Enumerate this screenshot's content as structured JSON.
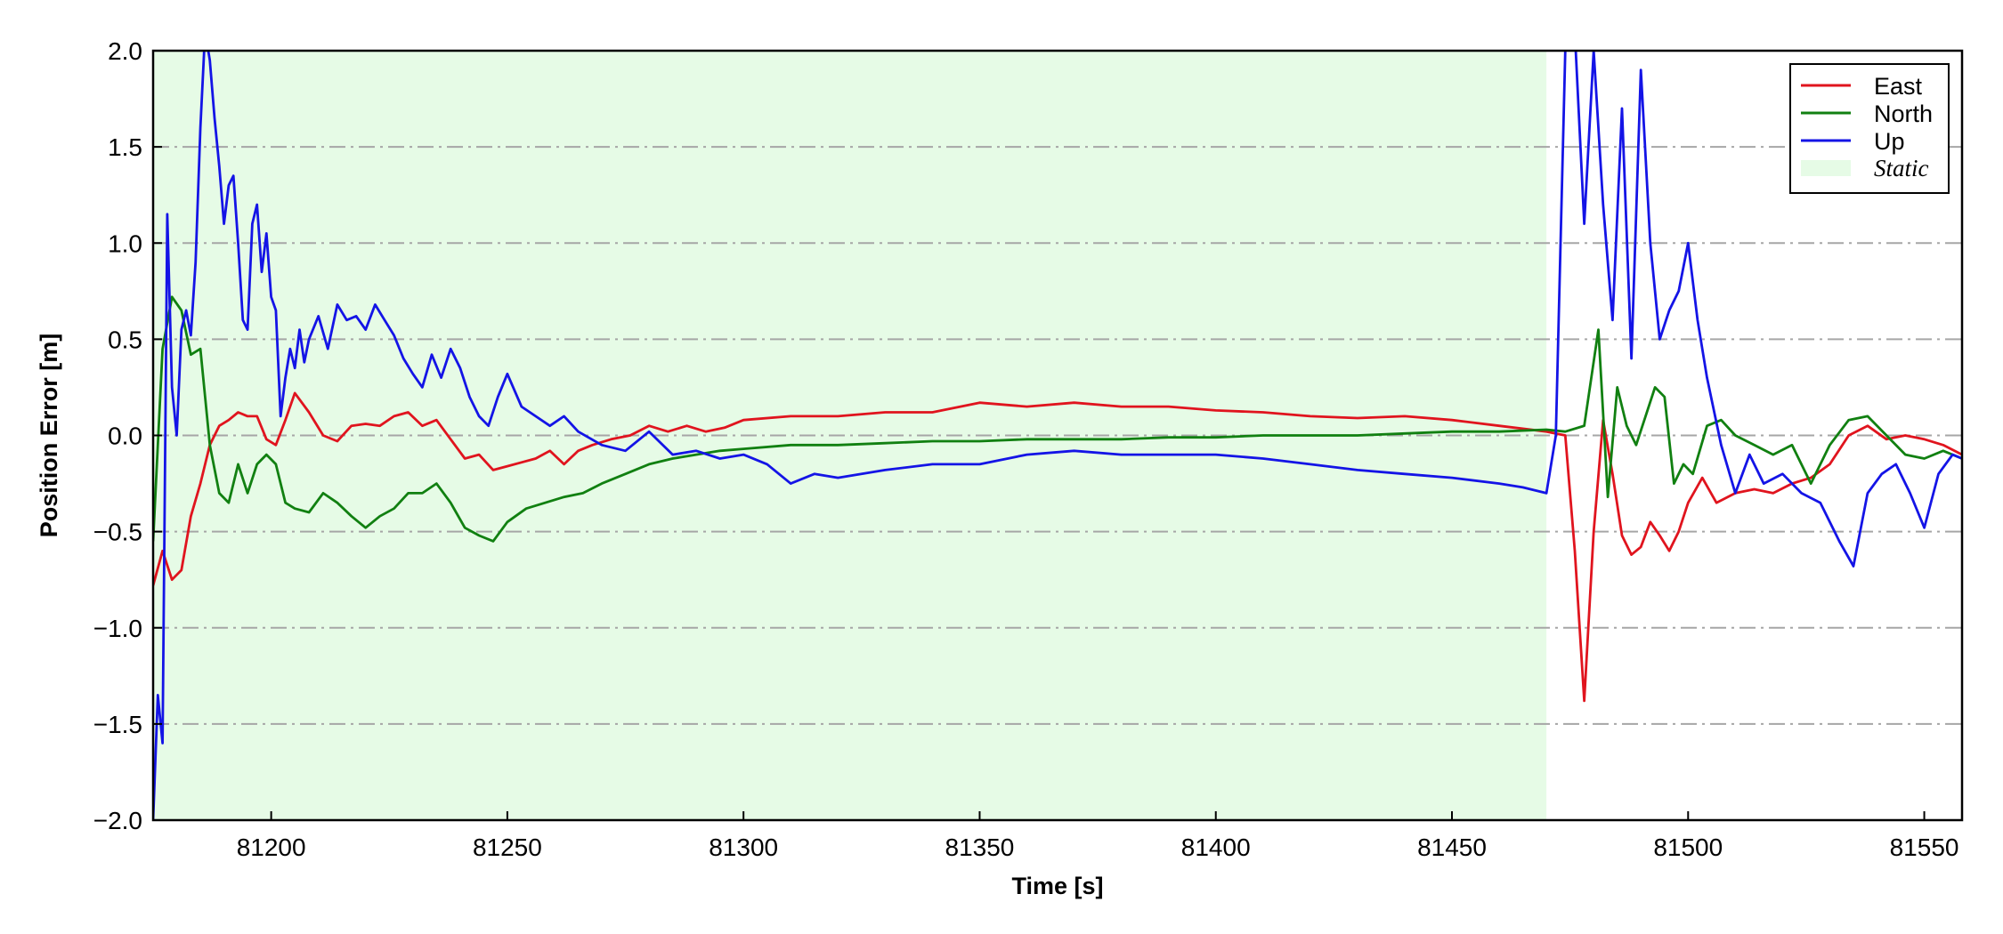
{
  "chart_data": {
    "type": "line",
    "xlabel": "Time [s]",
    "ylabel": "Position Error [m]",
    "xlim": [
      81175,
      81558
    ],
    "ylim": [
      -2.0,
      2.0
    ],
    "xticks": [
      81200,
      81250,
      81300,
      81350,
      81400,
      81450,
      81500,
      81550
    ],
    "xtick_labels": [
      "81200",
      "81250",
      "81300",
      "81350",
      "81400",
      "81450",
      "81500",
      "81550"
    ],
    "yticks": [
      2.0,
      1.5,
      1.0,
      0.5,
      0.0,
      -0.5,
      -1.0,
      -1.5,
      -2.0
    ],
    "ytick_labels": [
      "2.0",
      "1.5",
      "1.0",
      "0.5",
      "0.0",
      "−0.5",
      "−1.0",
      "−1.5",
      "−2.0"
    ],
    "grid": "horizontal dash-dot",
    "legend_position": "top-right",
    "shaded_region": {
      "label": "Static",
      "x": [
        81175,
        81470
      ],
      "color": "#e6fbe6"
    },
    "series": [
      {
        "name": "East",
        "color": "#e0141e",
        "x": [
          81175,
          81177,
          81179,
          81181,
          81183,
          81185,
          81187,
          81189,
          81191,
          81193,
          81195,
          81197,
          81199,
          81201,
          81203,
          81205,
          81208,
          81211,
          81214,
          81217,
          81220,
          81223,
          81226,
          81229,
          81232,
          81235,
          81238,
          81241,
          81244,
          81247,
          81250,
          81253,
          81256,
          81259,
          81262,
          81265,
          81268,
          81272,
          81276,
          81280,
          81284,
          81288,
          81292,
          81296,
          81300,
          81310,
          81320,
          81330,
          81340,
          81350,
          81360,
          81370,
          81380,
          81390,
          81400,
          81410,
          81420,
          81430,
          81440,
          81450,
          81460,
          81470,
          81474,
          81476,
          81478,
          81480,
          81482,
          81484,
          81486,
          81488,
          81490,
          81492,
          81494,
          81496,
          81498,
          81500,
          81503,
          81506,
          81510,
          81514,
          81518,
          81522,
          81526,
          81530,
          81534,
          81538,
          81542,
          81546,
          81550,
          81554,
          81558
        ],
        "values": [
          -0.78,
          -0.6,
          -0.75,
          -0.7,
          -0.42,
          -0.25,
          -0.05,
          0.05,
          0.08,
          0.12,
          0.1,
          0.1,
          -0.02,
          -0.05,
          0.08,
          0.22,
          0.12,
          0.0,
          -0.03,
          0.05,
          0.06,
          0.05,
          0.1,
          0.12,
          0.05,
          0.08,
          -0.02,
          -0.12,
          -0.1,
          -0.18,
          -0.16,
          -0.14,
          -0.12,
          -0.08,
          -0.15,
          -0.08,
          -0.05,
          -0.02,
          0.0,
          0.05,
          0.02,
          0.05,
          0.02,
          0.04,
          0.08,
          0.1,
          0.1,
          0.12,
          0.12,
          0.17,
          0.15,
          0.17,
          0.15,
          0.15,
          0.13,
          0.12,
          0.1,
          0.09,
          0.1,
          0.08,
          0.05,
          0.02,
          0.0,
          -0.6,
          -1.38,
          -0.5,
          0.08,
          -0.2,
          -0.52,
          -0.62,
          -0.58,
          -0.45,
          -0.52,
          -0.6,
          -0.5,
          -0.35,
          -0.22,
          -0.35,
          -0.3,
          -0.28,
          -0.3,
          -0.25,
          -0.22,
          -0.15,
          0.0,
          0.05,
          -0.02,
          0.0,
          -0.02,
          -0.05,
          -0.1
        ]
      },
      {
        "name": "North",
        "color": "#118011",
        "x": [
          81175,
          81177,
          81179,
          81181,
          81183,
          81185,
          81187,
          81189,
          81191,
          81193,
          81195,
          81197,
          81199,
          81201,
          81203,
          81205,
          81208,
          81211,
          81214,
          81217,
          81220,
          81223,
          81226,
          81229,
          81232,
          81235,
          81238,
          81241,
          81244,
          81247,
          81250,
          81254,
          81258,
          81262,
          81266,
          81270,
          81275,
          81280,
          81285,
          81290,
          81295,
          81300,
          81310,
          81320,
          81330,
          81340,
          81350,
          81360,
          81370,
          81380,
          81390,
          81400,
          81410,
          81420,
          81430,
          81440,
          81450,
          81460,
          81470,
          81474,
          81478,
          81481,
          81483,
          81485,
          81487,
          81489,
          81491,
          81493,
          81495,
          81497,
          81499,
          81501,
          81504,
          81507,
          81510,
          81514,
          81518,
          81522,
          81526,
          81530,
          81534,
          81538,
          81542,
          81546,
          81550,
          81554,
          81558
        ],
        "values": [
          -0.55,
          0.45,
          0.72,
          0.65,
          0.42,
          0.45,
          -0.05,
          -0.3,
          -0.35,
          -0.15,
          -0.3,
          -0.15,
          -0.1,
          -0.15,
          -0.35,
          -0.38,
          -0.4,
          -0.3,
          -0.35,
          -0.42,
          -0.48,
          -0.42,
          -0.38,
          -0.3,
          -0.3,
          -0.25,
          -0.35,
          -0.48,
          -0.52,
          -0.55,
          -0.45,
          -0.38,
          -0.35,
          -0.32,
          -0.3,
          -0.25,
          -0.2,
          -0.15,
          -0.12,
          -0.1,
          -0.08,
          -0.07,
          -0.05,
          -0.05,
          -0.04,
          -0.03,
          -0.03,
          -0.02,
          -0.02,
          -0.02,
          -0.01,
          -0.01,
          0.0,
          0.0,
          0.0,
          0.01,
          0.02,
          0.02,
          0.03,
          0.02,
          0.05,
          0.55,
          -0.32,
          0.25,
          0.05,
          -0.05,
          0.1,
          0.25,
          0.2,
          -0.25,
          -0.15,
          -0.2,
          0.05,
          0.08,
          0.0,
          -0.05,
          -0.1,
          -0.05,
          -0.25,
          -0.05,
          0.08,
          0.1,
          0.0,
          -0.1,
          -0.12,
          -0.08,
          -0.12
        ]
      },
      {
        "name": "Up",
        "color": "#1414e6",
        "x": [
          81175,
          81176,
          81177,
          81178,
          81179,
          81180,
          81181,
          81182,
          81183,
          81184,
          81185,
          81186,
          81187,
          81188,
          81189,
          81190,
          81191,
          81192,
          81193,
          81194,
          81195,
          81196,
          81197,
          81198,
          81199,
          81200,
          81201,
          81202,
          81203,
          81204,
          81205,
          81206,
          81207,
          81208,
          81210,
          81212,
          81214,
          81216,
          81218,
          81220,
          81222,
          81224,
          81226,
          81228,
          81230,
          81232,
          81234,
          81236,
          81238,
          81240,
          81242,
          81244,
          81246,
          81248,
          81250,
          81253,
          81256,
          81259,
          81262,
          81265,
          81270,
          81275,
          81280,
          81285,
          81290,
          81295,
          81300,
          81305,
          81310,
          81315,
          81320,
          81330,
          81340,
          81350,
          81360,
          81370,
          81380,
          81390,
          81400,
          81410,
          81420,
          81430,
          81440,
          81450,
          81460,
          81465,
          81470,
          81472,
          81474,
          81476,
          81478,
          81480,
          81482,
          81484,
          81486,
          81488,
          81490,
          81492,
          81494,
          81496,
          81498,
          81500,
          81502,
          81504,
          81507,
          81510,
          81513,
          81516,
          81520,
          81524,
          81528,
          81532,
          81535,
          81538,
          81541,
          81544,
          81547,
          81550,
          81553,
          81556,
          81558
        ],
        "values": [
          -2.0,
          -1.35,
          -1.6,
          1.15,
          0.25,
          0.0,
          0.55,
          0.65,
          0.52,
          0.9,
          1.6,
          2.1,
          1.95,
          1.65,
          1.4,
          1.1,
          1.3,
          1.35,
          1.0,
          0.6,
          0.55,
          1.1,
          1.2,
          0.85,
          1.05,
          0.72,
          0.65,
          0.1,
          0.3,
          0.45,
          0.35,
          0.55,
          0.38,
          0.5,
          0.62,
          0.45,
          0.68,
          0.6,
          0.62,
          0.55,
          0.68,
          0.6,
          0.52,
          0.4,
          0.32,
          0.25,
          0.42,
          0.3,
          0.45,
          0.35,
          0.2,
          0.1,
          0.05,
          0.2,
          0.32,
          0.15,
          0.1,
          0.05,
          0.1,
          0.02,
          -0.05,
          -0.08,
          0.02,
          -0.1,
          -0.08,
          -0.12,
          -0.1,
          -0.15,
          -0.25,
          -0.2,
          -0.22,
          -0.18,
          -0.15,
          -0.15,
          -0.1,
          -0.08,
          -0.1,
          -0.1,
          -0.1,
          -0.12,
          -0.15,
          -0.18,
          -0.2,
          -0.22,
          -0.25,
          -0.27,
          -0.3,
          0.0,
          2.0,
          2.1,
          1.1,
          2.0,
          1.2,
          0.6,
          1.7,
          0.4,
          1.9,
          1.0,
          0.5,
          0.65,
          0.75,
          1.0,
          0.6,
          0.3,
          -0.05,
          -0.3,
          -0.1,
          -0.25,
          -0.2,
          -0.3,
          -0.35,
          -0.55,
          -0.68,
          -0.3,
          -0.2,
          -0.15,
          -0.3,
          -0.48,
          -0.2,
          -0.1,
          -0.12
        ]
      }
    ]
  }
}
